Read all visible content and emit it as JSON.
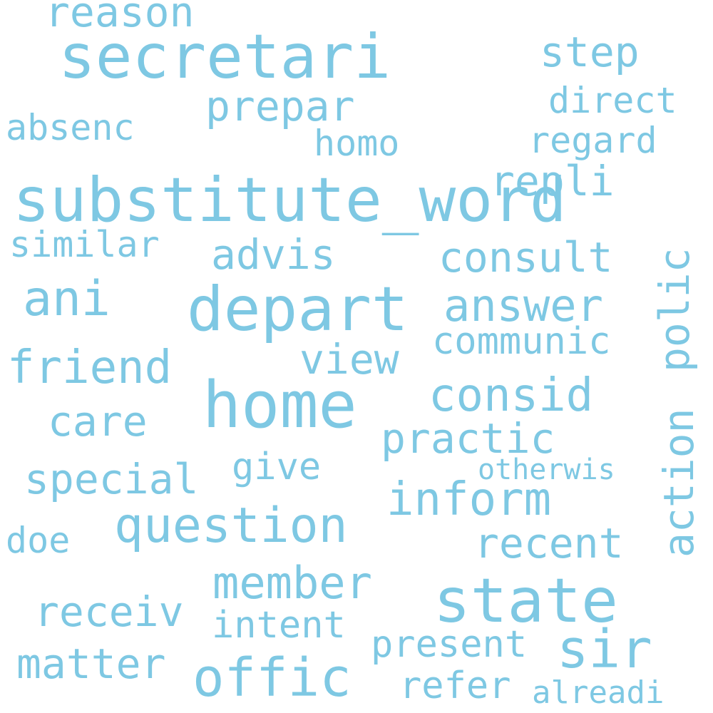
{
  "style": {
    "background": "#ffffff",
    "word_color": "#7ec8e3"
  },
  "words": [
    {
      "id": "w1",
      "text": "substitute_word"
    },
    {
      "id": "w2",
      "text": "secretari"
    },
    {
      "id": "w3",
      "text": "depart"
    },
    {
      "id": "w4",
      "text": "home"
    },
    {
      "id": "w5",
      "text": "state"
    },
    {
      "id": "w6",
      "text": "offic"
    },
    {
      "id": "w7",
      "text": "sir"
    },
    {
      "id": "w8",
      "text": "question"
    },
    {
      "id": "w9",
      "text": "inform"
    },
    {
      "id": "w10",
      "text": "consid"
    },
    {
      "id": "w11",
      "text": "ani"
    },
    {
      "id": "w12",
      "text": "friend"
    },
    {
      "id": "w13",
      "text": "member"
    },
    {
      "id": "w14",
      "text": "answer"
    },
    {
      "id": "w15",
      "text": "repli"
    },
    {
      "id": "w16",
      "text": "polic"
    },
    {
      "id": "w17",
      "text": "action"
    },
    {
      "id": "w18",
      "text": "advis"
    },
    {
      "id": "w19",
      "text": "consult"
    },
    {
      "id": "w20",
      "text": "view"
    },
    {
      "id": "w21",
      "text": "prepar"
    },
    {
      "id": "w22",
      "text": "step"
    },
    {
      "id": "w23",
      "text": "reason"
    },
    {
      "id": "w24",
      "text": "matter"
    },
    {
      "id": "w25",
      "text": "receiv"
    },
    {
      "id": "w26",
      "text": "recent"
    },
    {
      "id": "w27",
      "text": "practic"
    },
    {
      "id": "w28",
      "text": "care"
    },
    {
      "id": "w29",
      "text": "special"
    },
    {
      "id": "w30",
      "text": "communic"
    },
    {
      "id": "w31",
      "text": "present"
    },
    {
      "id": "w32",
      "text": "refer"
    },
    {
      "id": "w33",
      "text": "intent"
    },
    {
      "id": "w34",
      "text": "give"
    },
    {
      "id": "w35",
      "text": "regard"
    },
    {
      "id": "w36",
      "text": "direct"
    },
    {
      "id": "w37",
      "text": "absenc"
    },
    {
      "id": "w38",
      "text": "similar"
    },
    {
      "id": "w39",
      "text": "homo"
    },
    {
      "id": "w40",
      "text": "doe"
    },
    {
      "id": "w41",
      "text": "alreadi"
    },
    {
      "id": "w42",
      "text": "otherwis"
    }
  ]
}
